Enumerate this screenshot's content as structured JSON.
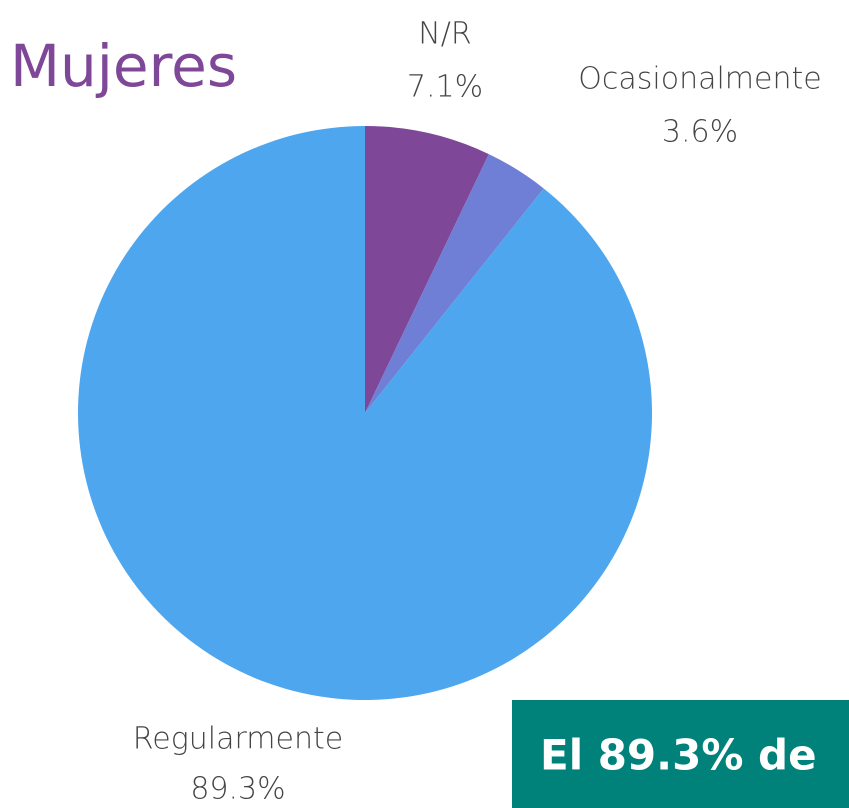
{
  "chart_data": {
    "type": "pie",
    "title": "Mujeres",
    "categories": [
      "N/R",
      "Ocasionalmente",
      "Regularmente"
    ],
    "values": [
      7.1,
      3.6,
      89.3
    ],
    "value_labels": [
      "7.1%",
      "3.6%",
      "89.3%"
    ],
    "colors": [
      "#7e4798",
      "#6f7fd6",
      "#4da6ee"
    ],
    "annotation": "El 89.3% de"
  }
}
